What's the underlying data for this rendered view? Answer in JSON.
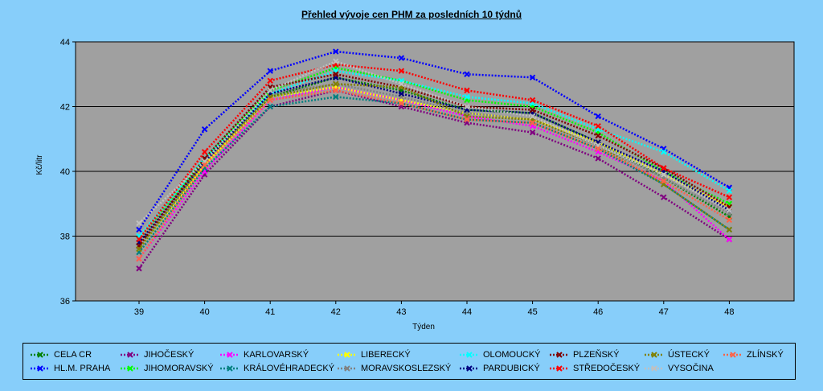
{
  "chart_data": {
    "type": "line",
    "title": "Přehled vývoje cen PHM za posledních 10 týdnů",
    "xlabel": "Týden",
    "ylabel": "Kč/litr",
    "categories": [
      "39",
      "40",
      "41",
      "42",
      "43",
      "44",
      "45",
      "46",
      "47",
      "48"
    ],
    "ylim": [
      36,
      44
    ],
    "yticks": [
      "36",
      "38",
      "40",
      "42",
      "44"
    ],
    "grid": true,
    "legend_position": "bottom",
    "series": [
      {
        "name": "CELA CR",
        "color": "#008000",
        "values": [
          37.7,
          40.2,
          42.3,
          42.9,
          42.5,
          41.9,
          41.8,
          40.9,
          39.8,
          38.6
        ]
      },
      {
        "name": "HL.M. PRAHA",
        "color": "#0000ff",
        "values": [
          38.2,
          41.3,
          43.1,
          43.7,
          43.5,
          43.0,
          42.9,
          41.7,
          40.7,
          39.5
        ]
      },
      {
        "name": "JIHOČESKÝ",
        "color": "#800080",
        "values": [
          37.0,
          39.9,
          42.0,
          42.5,
          42.0,
          41.5,
          41.2,
          40.4,
          39.2,
          37.9
        ]
      },
      {
        "name": "JIHOMORAVSKÝ",
        "color": "#00ff00",
        "values": [
          37.9,
          40.4,
          42.5,
          43.2,
          42.8,
          42.2,
          42.0,
          41.2,
          40.0,
          39.0
        ]
      },
      {
        "name": "KARLOVARSKÝ",
        "color": "#ff00ff",
        "values": [
          37.3,
          40.0,
          42.2,
          42.6,
          42.2,
          41.7,
          41.4,
          40.6,
          39.7,
          37.9
        ]
      },
      {
        "name": "KRÁLOVÉHRADECKÝ",
        "color": "#008080",
        "values": [
          37.5,
          40.1,
          42.0,
          42.3,
          42.1,
          41.6,
          41.5,
          40.7,
          39.6,
          38.2
        ]
      },
      {
        "name": "LIBERECKÝ",
        "color": "#ffff00",
        "values": [
          37.6,
          40.2,
          42.3,
          42.6,
          42.2,
          41.8,
          41.6,
          40.9,
          39.9,
          38.9
        ]
      },
      {
        "name": "MORAVSKOSLEZSKÝ",
        "color": "#808080",
        "values": [
          37.7,
          40.3,
          42.4,
          42.7,
          42.3,
          41.8,
          41.6,
          40.8,
          39.8,
          38.7
        ]
      },
      {
        "name": "OLOMOUCKÝ",
        "color": "#00ffff",
        "values": [
          38.0,
          40.4,
          42.4,
          43.1,
          42.8,
          42.3,
          42.1,
          41.3,
          40.6,
          39.4
        ]
      },
      {
        "name": "PARDUBICKÝ",
        "color": "#000080",
        "values": [
          37.8,
          40.3,
          42.4,
          42.9,
          42.4,
          41.9,
          41.8,
          40.9,
          40.0,
          38.8
        ]
      },
      {
        "name": "PLZEŇSKÝ",
        "color": "#800000",
        "values": [
          37.7,
          40.4,
          42.6,
          43.0,
          42.6,
          42.0,
          41.9,
          41.1,
          40.1,
          38.9
        ]
      },
      {
        "name": "STŘEDOČESKÝ",
        "color": "#ff0000",
        "values": [
          37.9,
          40.6,
          42.8,
          43.3,
          43.1,
          42.5,
          42.2,
          41.4,
          40.1,
          39.2
        ]
      },
      {
        "name": "ÚSTECKÝ",
        "color": "#808000",
        "values": [
          37.6,
          40.3,
          42.3,
          42.7,
          42.6,
          41.7,
          41.6,
          40.8,
          39.6,
          38.2
        ]
      },
      {
        "name": "VYSOČINA",
        "color": "#c0c0c0",
        "values": [
          38.4,
          40.3,
          42.5,
          43.4,
          42.7,
          42.0,
          41.7,
          40.8,
          39.9,
          38.8
        ]
      },
      {
        "name": "ZLÍNSKÝ",
        "color": "#ff6347",
        "values": [
          37.3,
          40.2,
          42.2,
          42.5,
          42.1,
          41.6,
          41.5,
          40.7,
          39.7,
          38.5
        ]
      }
    ]
  }
}
